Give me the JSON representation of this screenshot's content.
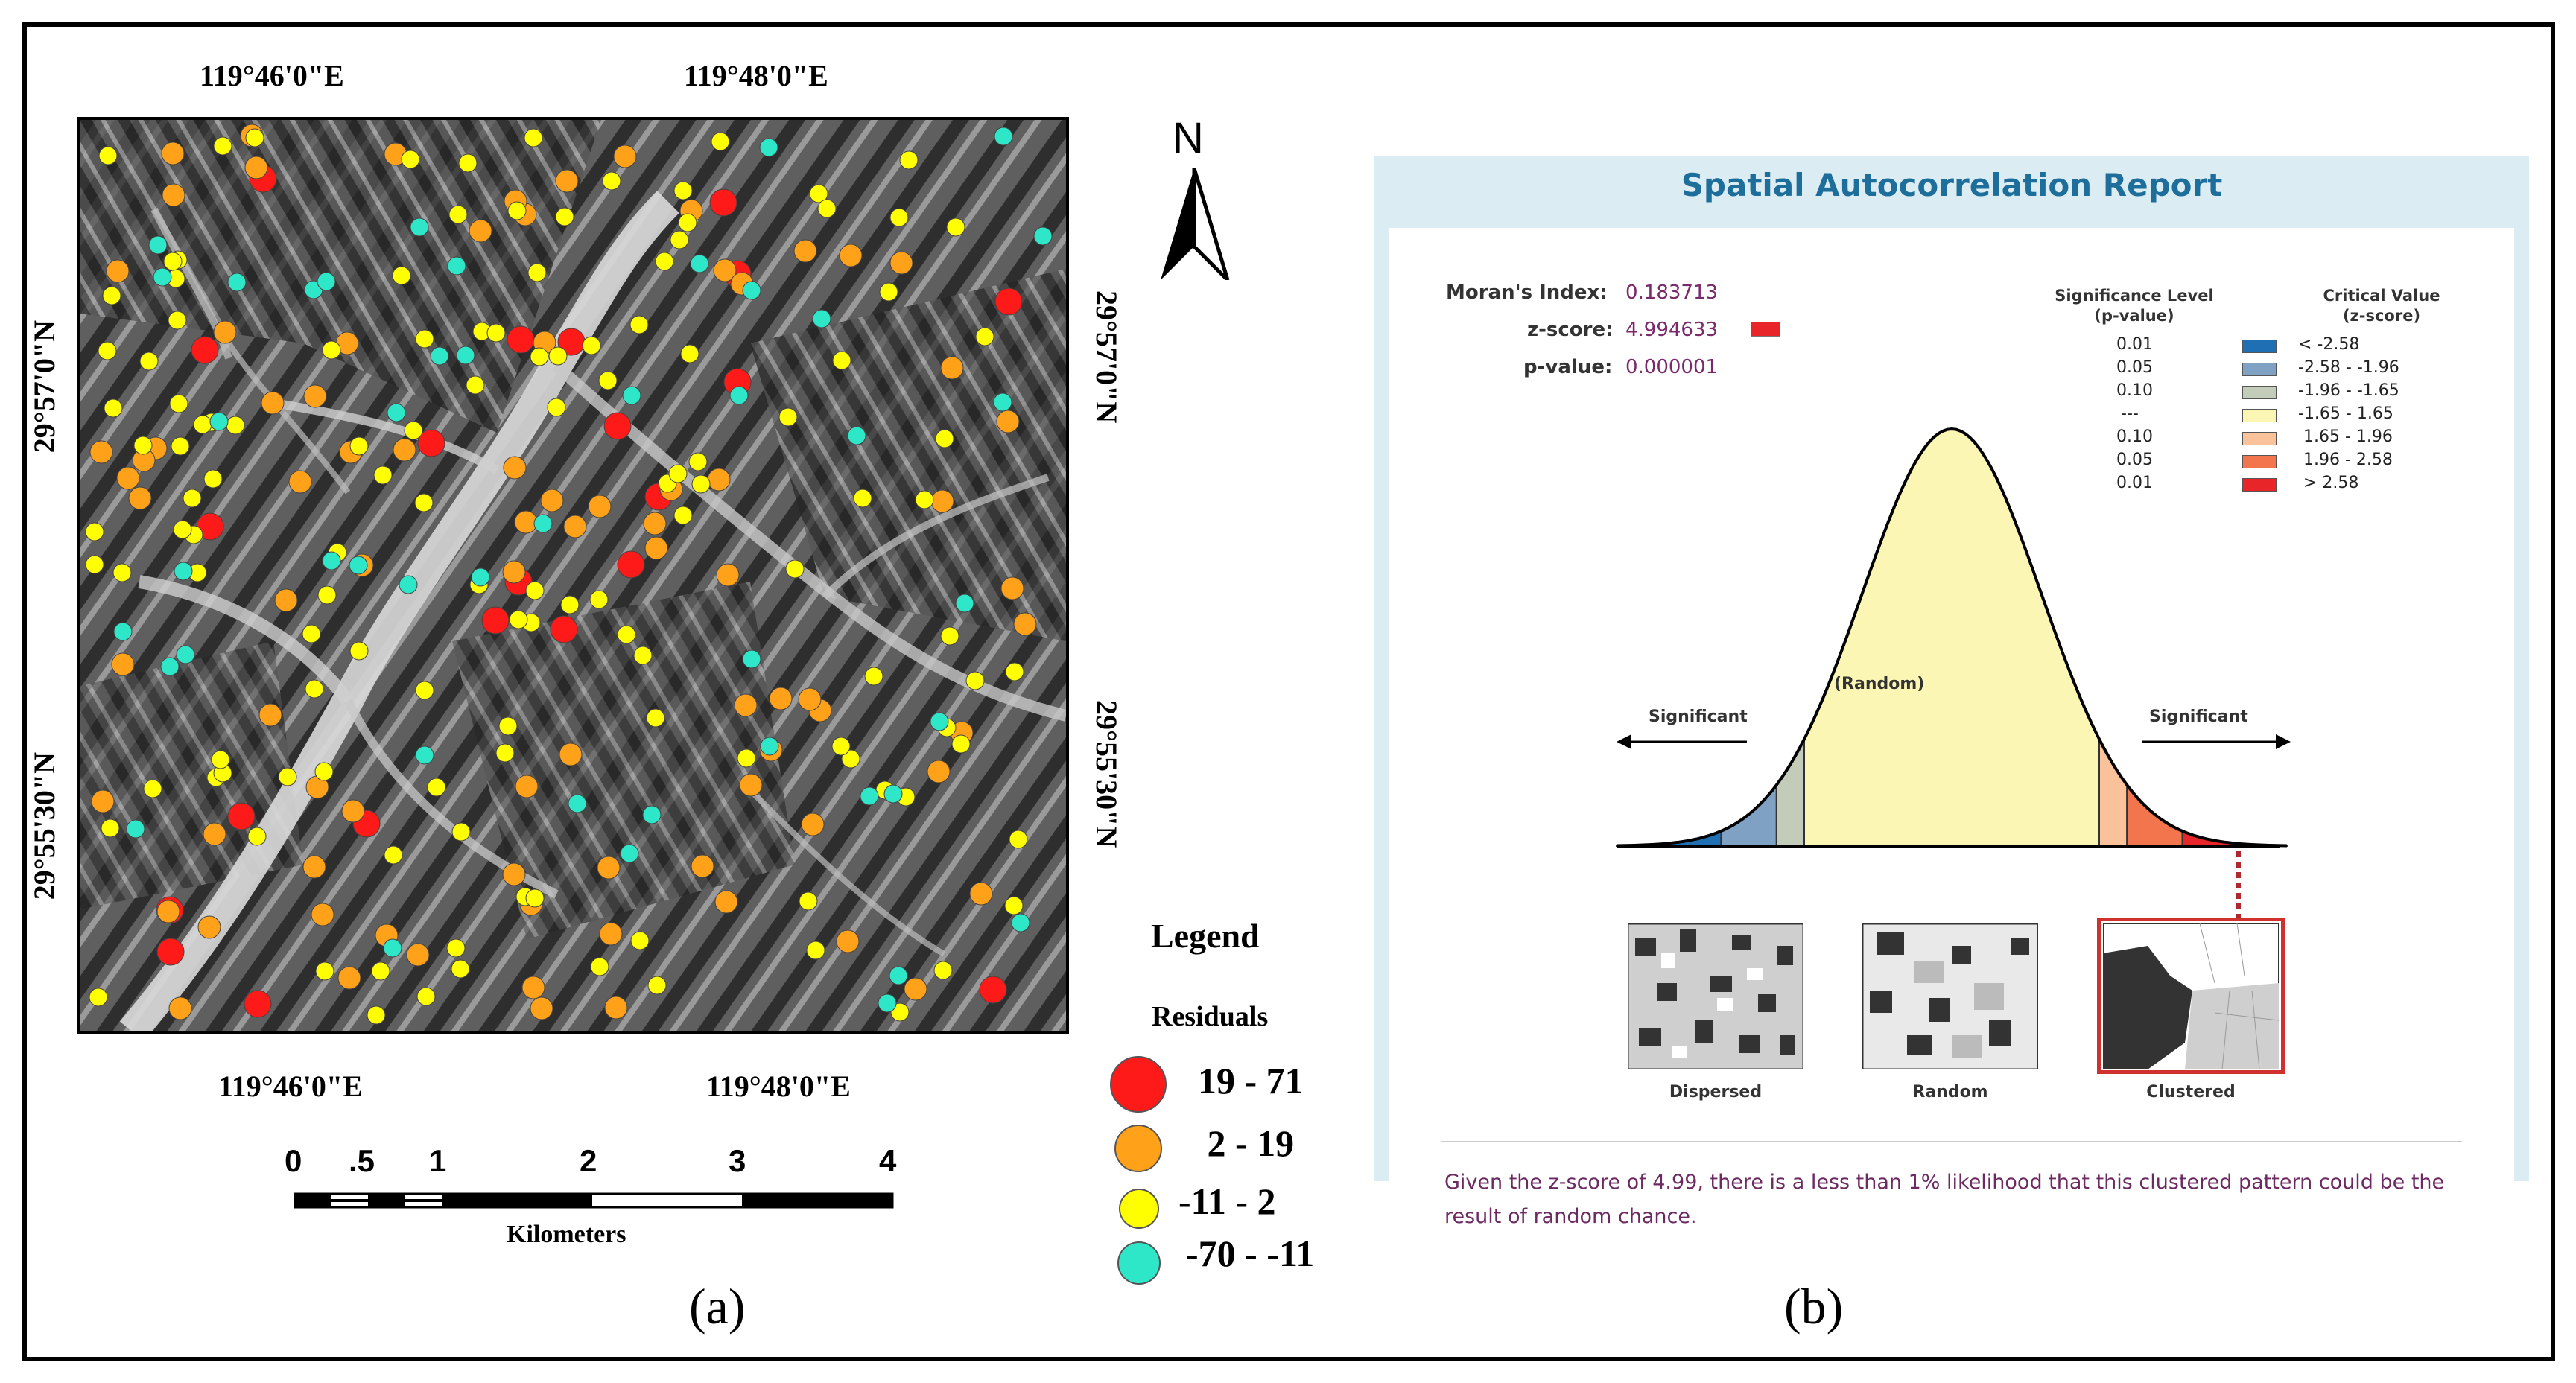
{
  "map": {
    "top_lon_labels": [
      "119°46'0\"E",
      "119°48'0\"E"
    ],
    "bottom_lon_labels": [
      "119°46'0\"E",
      "119°48'0\"E"
    ],
    "left_lat_labels": [
      "29°57'0\"N",
      "29°55'30\"N"
    ],
    "right_lat_labels": [
      "29°57'0\"N",
      "29°55'30\"N"
    ],
    "north_label": "N",
    "legend_title": "Legend",
    "legend_subtitle": "Residuals",
    "legend_items": [
      {
        "label": "19 - 71",
        "color": "#ff1a1a"
      },
      {
        "label": " 2 - 19",
        "color": "#ffa21a"
      },
      {
        "label": "-11 - 2",
        "color": "#ffff00"
      },
      {
        "label": "-70 - -11",
        "color": "#2ee6c8"
      }
    ],
    "scale_ticks": [
      "0",
      ".5",
      "1",
      "2",
      "3",
      "4"
    ],
    "scale_unit": "Kilometers",
    "subfigure_label": "(a)"
  },
  "report": {
    "title": "Spatial Autocorrelation Report",
    "morans_label": "Moran's Index:",
    "morans_value": "0.183713",
    "zscore_label": "z-score:",
    "zscore_value": "4.994633",
    "pvalue_label": "p-value:",
    "pvalue_value": "0.000001",
    "sig_header": "Significance Level\n(p-value)",
    "crit_header": "Critical Value\n(z-score)",
    "sig_rows": [
      {
        "p": "0.01",
        "z": "< -2.58",
        "color": "#1f6fb5"
      },
      {
        "p": "0.05",
        "z": "-2.58 - -1.96",
        "color": "#7fa2c4"
      },
      {
        "p": "0.10",
        "z": "-1.96 - -1.65",
        "color": "#c3cbb9"
      },
      {
        "p": "---",
        "z": "-1.65 - 1.65",
        "color": "#fbf6b4"
      },
      {
        "p": "0.10",
        "z": " 1.65 - 1.96",
        "color": "#f9c29a"
      },
      {
        "p": "0.05",
        "z": " 1.96 - 2.58",
        "color": "#f3754d"
      },
      {
        "p": "0.01",
        "z": " > 2.58",
        "color": "#e8262a"
      }
    ],
    "random_label": "(Random)",
    "sig_left": "Significant",
    "sig_right": "Significant",
    "patterns": [
      "Dispersed",
      "Random",
      "Clustered"
    ],
    "conclusion": "Given the z-score of 4.99, there is a less than 1% likelihood that this clustered pattern could be the result of random chance.",
    "subfigure_label": "(b)"
  }
}
